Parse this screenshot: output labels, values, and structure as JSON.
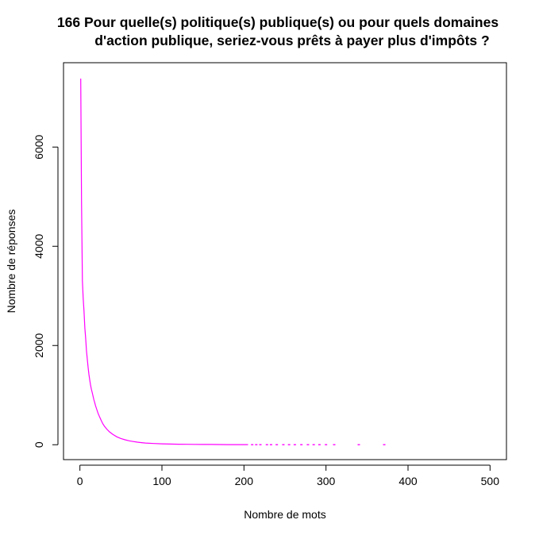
{
  "chart_data": {
    "type": "line",
    "title_lines": [
      "166 Pour quelle(s) politique(s) publique(s) ou pour quels domaines",
      "d'action publique, seriez-vous prêts à payer plus d'impôts ?"
    ],
    "xlabel": "Nombre de mots",
    "ylabel": "Nombre de réponses",
    "xlim": [
      -20,
      520
    ],
    "ylim": [
      -300,
      7700
    ],
    "x_ticks": [
      0,
      100,
      200,
      300,
      400,
      500
    ],
    "y_ticks": [
      0,
      2000,
      4000,
      6000
    ],
    "series": [
      {
        "color": "#ff00ff",
        "points": [
          [
            1,
            7380
          ],
          [
            2,
            4900
          ],
          [
            3,
            3300
          ],
          [
            4,
            2950
          ],
          [
            5,
            2700
          ],
          [
            6,
            2350
          ],
          [
            7,
            2150
          ],
          [
            8,
            1900
          ],
          [
            9,
            1720
          ],
          [
            10,
            1560
          ],
          [
            11,
            1420
          ],
          [
            12,
            1300
          ],
          [
            13,
            1200
          ],
          [
            14,
            1120
          ],
          [
            15,
            1050
          ],
          [
            16,
            980
          ],
          [
            17,
            910
          ],
          [
            18,
            850
          ],
          [
            19,
            790
          ],
          [
            20,
            740
          ],
          [
            22,
            640
          ],
          [
            24,
            560
          ],
          [
            26,
            490
          ],
          [
            28,
            420
          ],
          [
            30,
            370
          ],
          [
            33,
            310
          ],
          [
            36,
            260
          ],
          [
            40,
            210
          ],
          [
            45,
            160
          ],
          [
            50,
            125
          ],
          [
            55,
            100
          ],
          [
            60,
            80
          ],
          [
            65,
            65
          ],
          [
            70,
            52
          ],
          [
            75,
            42
          ],
          [
            80,
            35
          ],
          [
            90,
            25
          ],
          [
            100,
            18
          ],
          [
            110,
            14
          ],
          [
            120,
            11
          ],
          [
            130,
            9
          ],
          [
            140,
            7
          ],
          [
            150,
            6
          ],
          [
            160,
            5
          ],
          [
            170,
            4
          ],
          [
            180,
            3
          ],
          [
            190,
            3
          ],
          [
            200,
            2
          ],
          [
            205,
            2
          ]
        ],
        "sparse_x": [
          210,
          215,
          220,
          228,
          233,
          240,
          248,
          255,
          262,
          270,
          278,
          285,
          292,
          300,
          310,
          340,
          371
        ]
      }
    ],
    "grid": false
  }
}
